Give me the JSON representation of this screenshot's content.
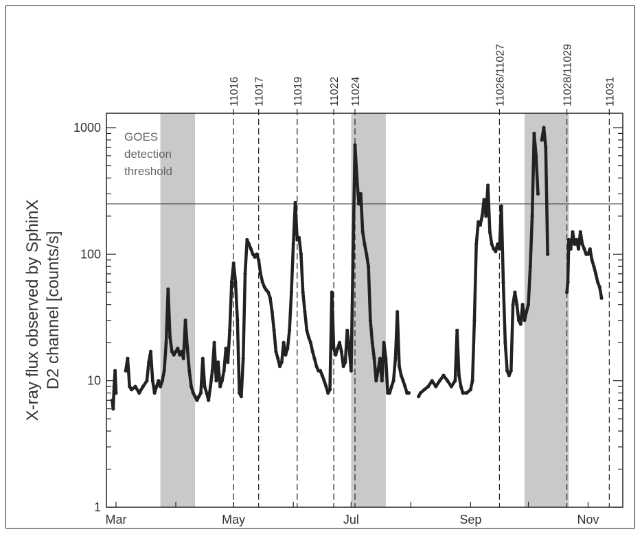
{
  "chart_data": {
    "type": "scatter",
    "ylabel": [
      "X-ray flux observed by SphinX",
      "D2 channel [counts/s]"
    ],
    "y_scale": "log",
    "ylim": [
      1,
      1300
    ],
    "xlim": [
      55,
      323
    ],
    "y_ticks": [
      {
        "value": 1,
        "label": "1"
      },
      {
        "value": 10,
        "label": "10"
      },
      {
        "value": 100,
        "label": "100"
      },
      {
        "value": 1000,
        "label": "1000"
      }
    ],
    "x_ticks": [
      {
        "day": 60,
        "label": "Mar"
      },
      {
        "day": 121,
        "label": "May"
      },
      {
        "day": 182,
        "label": "Jul"
      },
      {
        "day": 244,
        "label": "Sep"
      },
      {
        "day": 305,
        "label": "Nov"
      }
    ],
    "threshold": {
      "value": 250,
      "label": [
        "GOES",
        "detection",
        "threshold"
      ]
    },
    "shaded_periods": [
      [
        83,
        101
      ],
      [
        182,
        200
      ],
      [
        272,
        295
      ]
    ],
    "active_regions": [
      {
        "day": 121,
        "label": "11016"
      },
      {
        "day": 134,
        "label": "11017"
      },
      {
        "day": 154,
        "label": "11019"
      },
      {
        "day": 173,
        "label": "11022"
      },
      {
        "day": 184,
        "label": "11024"
      },
      {
        "day": 259,
        "label": "11026/11027"
      },
      {
        "day": 294,
        "label": "11028/11029"
      },
      {
        "day": 316,
        "label": "11031"
      }
    ],
    "series": [
      {
        "color": "#222222",
        "segments": [
          [
            [
              58,
              7
            ],
            [
              58.5,
              6
            ],
            [
              59,
              9
            ],
            [
              59.5,
              12
            ],
            [
              60,
              8
            ]
          ],
          [
            [
              65,
              12
            ],
            [
              66,
              15
            ],
            [
              67,
              9
            ],
            [
              68,
              8.5
            ],
            [
              70,
              9
            ],
            [
              72,
              8
            ],
            [
              74,
              9
            ],
            [
              76,
              10
            ],
            [
              77,
              14
            ],
            [
              78,
              17
            ],
            [
              79,
              10
            ],
            [
              80,
              8
            ],
            [
              81,
              9
            ],
            [
              82,
              10
            ],
            [
              83,
              9
            ],
            [
              84,
              10
            ],
            [
              85,
              12
            ],
            [
              86,
              20
            ],
            [
              87,
              53
            ],
            [
              88,
              22
            ],
            [
              89,
              17
            ],
            [
              90,
              16
            ],
            [
              91,
              17
            ],
            [
              92,
              18
            ],
            [
              93,
              16
            ],
            [
              94,
              17
            ],
            [
              95,
              15
            ],
            [
              96,
              30
            ],
            [
              97,
              18
            ],
            [
              98,
              12
            ],
            [
              99,
              9
            ],
            [
              100,
              8
            ],
            [
              101,
              7.5
            ],
            [
              102,
              7
            ],
            [
              103,
              7.5
            ],
            [
              104,
              8
            ],
            [
              105,
              15
            ],
            [
              106,
              9
            ],
            [
              107,
              8
            ],
            [
              108,
              7
            ],
            [
              109,
              9
            ],
            [
              110,
              12
            ],
            [
              111,
              20
            ],
            [
              112,
              10
            ],
            [
              113,
              14
            ],
            [
              114,
              9
            ],
            [
              115,
              10
            ],
            [
              116,
              12
            ],
            [
              117,
              18
            ],
            [
              118,
              14
            ],
            [
              119,
              25
            ],
            [
              120,
              60
            ],
            [
              121,
              85
            ],
            [
              122,
              60
            ],
            [
              123,
              30
            ],
            [
              124,
              8
            ],
            [
              125,
              7.5
            ],
            [
              126,
              15
            ],
            [
              127,
              70
            ],
            [
              128,
              130
            ],
            [
              129,
              120
            ],
            [
              130,
              110
            ],
            [
              131,
              100
            ],
            [
              132,
              95
            ],
            [
              133,
              100
            ],
            [
              134,
              90
            ],
            [
              135,
              70
            ],
            [
              136,
              60
            ],
            [
              137,
              55
            ],
            [
              138,
              52
            ],
            [
              139,
              50
            ],
            [
              140,
              45
            ],
            [
              141,
              35
            ],
            [
              142,
              25
            ],
            [
              143,
              17
            ],
            [
              144,
              15
            ],
            [
              145,
              13
            ],
            [
              146,
              14
            ],
            [
              147,
              20
            ],
            [
              148,
              16
            ],
            [
              149,
              18
            ],
            [
              150,
              25
            ],
            [
              151,
              50
            ],
            [
              152,
              120
            ],
            [
              153,
              255
            ],
            [
              154,
              130
            ],
            [
              155,
              135
            ],
            [
              156,
              100
            ],
            [
              157,
              50
            ],
            [
              158,
              35
            ],
            [
              159,
              25
            ],
            [
              160,
              22
            ],
            [
              161,
              20
            ],
            [
              162,
              17
            ],
            [
              163,
              15
            ],
            [
              164,
              13
            ],
            [
              165,
              12
            ],
            [
              166,
              12
            ],
            [
              167,
              11
            ],
            [
              168,
              10
            ],
            [
              169,
              9
            ],
            [
              170,
              8
            ],
            [
              171,
              8.5
            ],
            [
              172,
              50
            ],
            [
              173,
              18
            ],
            [
              174,
              16
            ],
            [
              175,
              18
            ],
            [
              176,
              20
            ],
            [
              177,
              17
            ],
            [
              178,
              13
            ],
            [
              179,
              14
            ],
            [
              180,
              25
            ],
            [
              181,
              18
            ],
            [
              182,
              12
            ],
            [
              183,
              100
            ],
            [
              184,
              730
            ],
            [
              185,
              400
            ],
            [
              186,
              250
            ],
            [
              187,
              300
            ],
            [
              188,
              150
            ],
            [
              189,
              120
            ],
            [
              190,
              100
            ],
            [
              191,
              80
            ],
            [
              192,
              30
            ],
            [
              193,
              20
            ],
            [
              194,
              15
            ],
            [
              195,
              10
            ],
            [
              196,
              12
            ],
            [
              197,
              15
            ],
            [
              198,
              10
            ],
            [
              199,
              20
            ],
            [
              200,
              15
            ],
            [
              201,
              8
            ],
            [
              202,
              8
            ],
            [
              203,
              9
            ],
            [
              204,
              10
            ],
            [
              205,
              15
            ],
            [
              206,
              35
            ],
            [
              207,
              13
            ],
            [
              208,
              11
            ],
            [
              209,
              10
            ],
            [
              210,
              9
            ],
            [
              211,
              8
            ],
            [
              212,
              8
            ]
          ],
          [
            [
              217,
              7.5
            ],
            [
              218,
              8
            ],
            [
              220,
              8.5
            ],
            [
              222,
              9
            ],
            [
              224,
              10
            ],
            [
              226,
              9
            ],
            [
              228,
              10
            ],
            [
              230,
              11
            ],
            [
              232,
              10
            ],
            [
              234,
              9
            ],
            [
              236,
              10
            ],
            [
              237,
              25
            ],
            [
              238,
              11
            ],
            [
              239,
              9
            ],
            [
              240,
              8
            ],
            [
              242,
              8
            ],
            [
              244,
              8.5
            ],
            [
              245,
              10
            ],
            [
              246,
              30
            ],
            [
              247,
              120
            ],
            [
              248,
              180
            ],
            [
              249,
              170
            ],
            [
              250,
              200
            ],
            [
              251,
              270
            ],
            [
              252,
              200
            ],
            [
              253,
              350
            ],
            [
              254,
              150
            ],
            [
              255,
              120
            ],
            [
              256,
              110
            ],
            [
              257,
              105
            ],
            [
              258,
              120
            ],
            [
              259,
              110
            ],
            [
              260,
              240
            ],
            [
              261,
              60
            ],
            [
              262,
              20
            ],
            [
              263,
              12
            ],
            [
              264,
              11
            ],
            [
              265,
              12
            ],
            [
              266,
              40
            ],
            [
              267,
              50
            ],
            [
              268,
              40
            ],
            [
              269,
              30
            ],
            [
              270,
              28
            ],
            [
              271,
              40
            ],
            [
              272,
              30
            ],
            [
              273,
              35
            ],
            [
              274,
              40
            ],
            [
              275,
              80
            ],
            [
              276,
              200
            ],
            [
              277,
              900
            ],
            [
              278,
              600
            ],
            [
              279,
              300
            ]
          ],
          [
            [
              281,
              800
            ],
            [
              282,
              1000
            ],
            [
              283,
              700
            ],
            [
              284,
              100
            ]
          ],
          [
            [
              294,
              50
            ],
            [
              294.5,
              60
            ],
            [
              295,
              130
            ],
            [
              296,
              110
            ],
            [
              297,
              150
            ],
            [
              298,
              120
            ],
            [
              299,
              130
            ],
            [
              300,
              110
            ],
            [
              301,
              150
            ],
            [
              302,
              120
            ],
            [
              303,
              110
            ],
            [
              304,
              100
            ],
            [
              305,
              100
            ],
            [
              306,
              110
            ],
            [
              307,
              90
            ],
            [
              308,
              80
            ],
            [
              309,
              70
            ],
            [
              310,
              60
            ],
            [
              311,
              55
            ],
            [
              312,
              45
            ]
          ]
        ]
      }
    ]
  }
}
